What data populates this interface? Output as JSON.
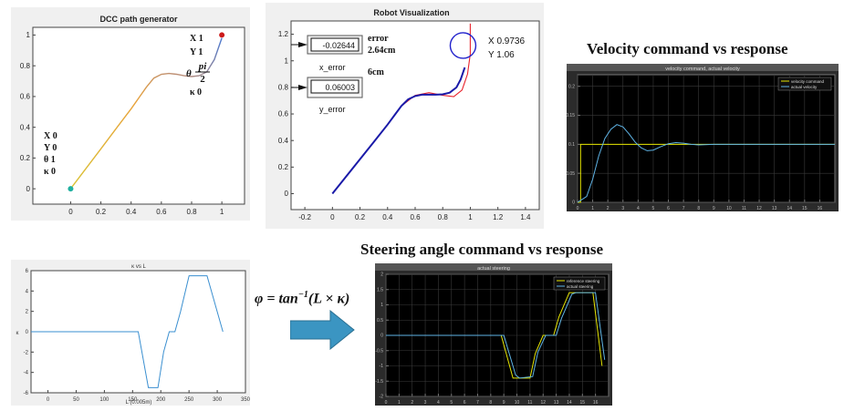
{
  "headings": {
    "velocity": "Velocity command vs response",
    "steering": "Steering angle command vs response"
  },
  "formula": {
    "lhs": "φ = tan",
    "exp": "−1",
    "rhs": "(L × κ)"
  },
  "colors": {
    "matlab_bg": "#f0f0f0",
    "scope_bg": "#000000",
    "grid": "#3a3a3a",
    "command": "#e6e600",
    "response": "#5fb4e6",
    "path_blue": "#1a1aa8",
    "path_red": "#e8212b",
    "arrow": "#3b95c2"
  },
  "chart_data": [
    {
      "id": "dcc",
      "type": "line",
      "title": "DCC path generator",
      "xlim": [
        -0.25,
        1.15
      ],
      "ylim": [
        -0.1,
        1.05
      ],
      "xticks": [
        "0",
        "0.2",
        "0.4",
        "0.6",
        "0.8",
        "1"
      ],
      "yticks": [
        "0",
        "0.2",
        "0.4",
        "0.6",
        "0.8",
        "1"
      ],
      "x": [
        0,
        0.1,
        0.2,
        0.3,
        0.4,
        0.45,
        0.5,
        0.55,
        0.6,
        0.65,
        0.7,
        0.75,
        0.8,
        0.85,
        0.9,
        0.95,
        1.0
      ],
      "y": [
        0,
        0.13,
        0.26,
        0.39,
        0.52,
        0.59,
        0.66,
        0.72,
        0.745,
        0.75,
        0.745,
        0.735,
        0.73,
        0.735,
        0.76,
        0.84,
        0.98
      ],
      "start_info": {
        "x": "X 0",
        "y": "Y 0",
        "theta": "θ 1",
        "kappa": "κ 0"
      },
      "end_info": {
        "x": "X 1",
        "y": "Y 1",
        "theta_label": "θ",
        "theta_num": "pi",
        "theta_den": "2",
        "kappa": "κ 0"
      }
    },
    {
      "id": "robot",
      "type": "line",
      "title": "Robot Visualization",
      "xlim": [
        -0.3,
        1.5
      ],
      "ylim": [
        -0.12,
        1.3
      ],
      "xticks": [
        "-0.2",
        "0",
        "0.2",
        "0.4",
        "0.6",
        "0.8",
        "1",
        "1.2",
        "1.4"
      ],
      "yticks": [
        "0",
        "0.2",
        "0.4",
        "0.6",
        "0.8",
        "1",
        "1.2"
      ],
      "series": [
        {
          "color": "path_blue",
          "x": [
            0,
            0.1,
            0.2,
            0.3,
            0.4,
            0.45,
            0.5,
            0.55,
            0.6,
            0.65,
            0.7,
            0.75,
            0.8,
            0.85,
            0.9,
            0.93,
            0.96
          ],
          "y": [
            0,
            0.13,
            0.26,
            0.39,
            0.52,
            0.59,
            0.66,
            0.71,
            0.735,
            0.745,
            0.745,
            0.745,
            0.748,
            0.76,
            0.8,
            0.86,
            0.95
          ]
        },
        {
          "color": "path_red",
          "x": [
            0.5,
            0.6,
            0.7,
            0.8,
            0.88,
            0.94,
            0.98,
            1.0,
            1.0
          ],
          "y": [
            0.66,
            0.74,
            0.76,
            0.74,
            0.73,
            0.78,
            0.9,
            1.05,
            1.28
          ]
        }
      ],
      "marker": {
        "x": 0.9736,
        "y": 1.06,
        "label_x": "X 0.9736",
        "label_y": "Y 1.06"
      },
      "x_error": {
        "value": "-0.02644",
        "label": "x_error",
        "note": "error",
        "note2": "2.64cm"
      },
      "y_error": {
        "value": "0.06003",
        "label": "y_error",
        "note": "6cm"
      }
    },
    {
      "id": "velocity",
      "type": "line",
      "title": "velocity command, actual velocity",
      "xlim": [
        0,
        17
      ],
      "ylim": [
        0,
        0.22
      ],
      "xticks": [
        "0",
        "1",
        "2",
        "3",
        "4",
        "5",
        "6",
        "7",
        "8",
        "9",
        "10",
        "11",
        "12",
        "13",
        "14",
        "15",
        "16"
      ],
      "yticks": [
        "0",
        "0.05",
        "0.1",
        "0.15",
        "0.2"
      ],
      "legend": [
        "velocity command",
        "actual velocity"
      ],
      "series": [
        {
          "name": "velocity command",
          "color": "command",
          "x": [
            0,
            0.2,
            0.2,
            17
          ],
          "y": [
            0,
            0,
            0.1,
            0.1
          ]
        },
        {
          "name": "actual velocity",
          "color": "response",
          "x": [
            0,
            0.6,
            1.0,
            1.4,
            1.8,
            2.2,
            2.6,
            3.0,
            3.4,
            3.8,
            4.2,
            4.6,
            5.0,
            5.5,
            6.0,
            6.5,
            7.0,
            7.5,
            8.0,
            9.0,
            10,
            12,
            14,
            17
          ],
          "y": [
            0,
            0.01,
            0.04,
            0.08,
            0.11,
            0.126,
            0.134,
            0.13,
            0.118,
            0.104,
            0.094,
            0.089,
            0.09,
            0.096,
            0.101,
            0.103,
            0.102,
            0.1,
            0.099,
            0.1,
            0.1,
            0.1,
            0.1,
            0.1
          ]
        }
      ]
    },
    {
      "id": "kappa",
      "type": "line",
      "title": "κ vs L",
      "xlabel": "L (0.005m)",
      "ylabel": "κ",
      "xlim": [
        -30,
        350
      ],
      "ylim": [
        -6,
        6
      ],
      "xticks": [
        "0",
        "50",
        "100",
        "150",
        "200",
        "250",
        "300",
        "350"
      ],
      "yticks": [
        "-6",
        "-4",
        "-2",
        "0",
        "2",
        "4",
        "6"
      ],
      "x": [
        -30,
        160,
        178,
        195,
        205,
        215,
        225,
        235,
        250,
        282,
        310
      ],
      "y": [
        0,
        0,
        -5.5,
        -5.5,
        -2,
        0,
        0,
        2,
        5.5,
        5.5,
        0
      ]
    },
    {
      "id": "steering",
      "type": "line",
      "title": "actual steering",
      "xlim": [
        0,
        17
      ],
      "ylim": [
        -2,
        2
      ],
      "xticks": [
        "0",
        "1",
        "2",
        "3",
        "4",
        "5",
        "6",
        "7",
        "8",
        "9",
        "10",
        "11",
        "12",
        "13",
        "14",
        "15",
        "16"
      ],
      "yticks": [
        "-2",
        "-1.5",
        "-1",
        "-0.5",
        "0",
        "0.5",
        "1",
        "1.5",
        "2"
      ],
      "legend": [
        "reference steering",
        "actual steering"
      ],
      "series": [
        {
          "name": "reference steering",
          "color": "command",
          "x": [
            0,
            8.8,
            9.7,
            11.0,
            11.4,
            12.0,
            12.8,
            13.2,
            14.0,
            15.8,
            16.5
          ],
          "y": [
            0,
            0,
            -1.4,
            -1.4,
            -0.6,
            0,
            0,
            0.6,
            1.4,
            1.4,
            -1.0
          ]
        },
        {
          "name": "actual steering",
          "color": "response",
          "x": [
            0,
            9.0,
            9.9,
            10.2,
            11.2,
            11.6,
            12.2,
            13.0,
            13.4,
            14.2,
            14.5,
            16.0,
            16.7
          ],
          "y": [
            0,
            0,
            -1.3,
            -1.4,
            -1.35,
            -0.55,
            0,
            0,
            0.55,
            1.35,
            1.4,
            1.4,
            -0.8
          ]
        }
      ]
    }
  ]
}
